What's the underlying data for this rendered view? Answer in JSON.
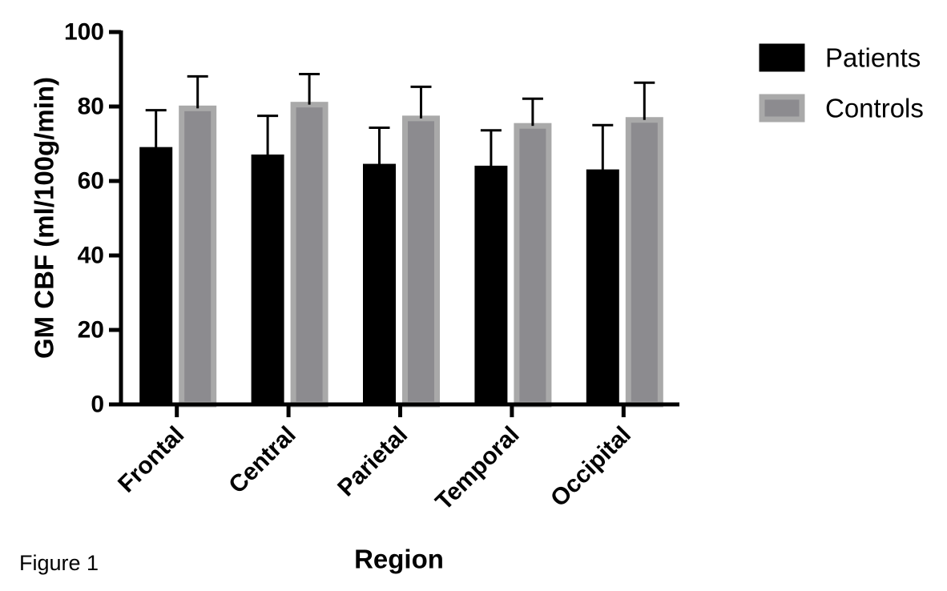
{
  "figure_label": "Figure 1",
  "chart_data": {
    "type": "bar",
    "title": "",
    "xlabel": "Region",
    "ylabel": "GM CBF (ml/100g/min)",
    "categories": [
      "Frontal",
      "Central",
      "Parietal",
      "Temporal",
      "Occipital"
    ],
    "series": [
      {
        "name": "Patients",
        "color": "#000000",
        "values": [
          69,
          67,
          64.5,
          64,
          63
        ],
        "errors": [
          10,
          10.5,
          9.8,
          9.6,
          12
        ]
      },
      {
        "name": "Controls",
        "color": "#8c8b8f",
        "edge_color": "#a9a9a9",
        "values": [
          79.5,
          80.5,
          76.8,
          74.8,
          76.4
        ],
        "errors": [
          8.6,
          8.2,
          8.5,
          7.3,
          10
        ]
      }
    ],
    "ylim": [
      0,
      100
    ],
    "yticks": [
      0,
      20,
      40,
      60,
      80,
      100
    ],
    "legend_position": "top-right",
    "grid": false
  }
}
